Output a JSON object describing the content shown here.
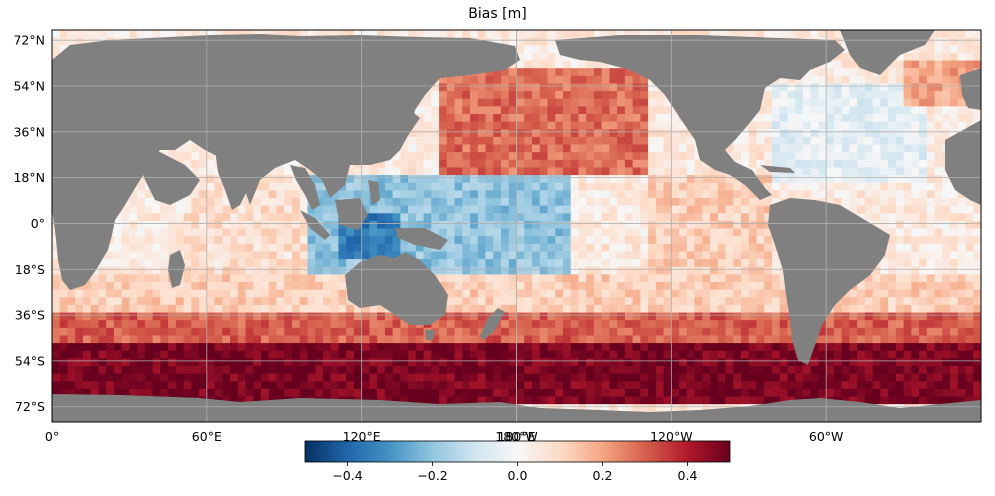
{
  "title": "Bias [m]",
  "map": {
    "projection": "PlateCarree",
    "lon_range": [
      0,
      360
    ],
    "lat_range": [
      -78,
      76
    ],
    "land_color": "#808080",
    "grid_color": "#b0b0b0",
    "lat_ticks": [
      {
        "value": 72,
        "label": "72°N"
      },
      {
        "value": 54,
        "label": "54°N"
      },
      {
        "value": 36,
        "label": "36°N"
      },
      {
        "value": 18,
        "label": "18°N"
      },
      {
        "value": 0,
        "label": "0°"
      },
      {
        "value": -18,
        "label": "18°S"
      },
      {
        "value": -36,
        "label": "36°S"
      },
      {
        "value": -54,
        "label": "54°S"
      },
      {
        "value": -72,
        "label": "72°S"
      }
    ],
    "lon_ticks": [
      {
        "value": 0,
        "label": "0°"
      },
      {
        "value": 60,
        "label": "60°E"
      },
      {
        "value": 120,
        "label": "120°E"
      },
      {
        "value": 180,
        "label": "180°E"
      },
      {
        "value": 180,
        "label": "180°W"
      },
      {
        "value": 240,
        "label": "120°W"
      },
      {
        "value": 300,
        "label": "60°W"
      }
    ]
  },
  "colorbar": {
    "colormap": "RdBu_r",
    "range": [
      -0.5,
      0.5
    ],
    "ticks": [
      {
        "value": -0.4,
        "label": "−0.4"
      },
      {
        "value": -0.2,
        "label": "−0.2"
      },
      {
        "value": 0.0,
        "label": "0.0"
      },
      {
        "value": 0.2,
        "label": "0.2"
      },
      {
        "value": 0.4,
        "label": "0.4"
      }
    ]
  },
  "chart_data": {
    "type": "heatmap",
    "title": "Bias [m]",
    "value_range": [
      -0.5,
      0.5
    ],
    "regions": [
      {
        "lat": [
          -70,
          -48
        ],
        "lon": [
          0,
          360
        ],
        "bias": 0.48
      },
      {
        "lat": [
          -48,
          -36
        ],
        "lon": [
          0,
          360
        ],
        "bias": 0.3
      },
      {
        "lat": [
          -36,
          -20
        ],
        "lon": [
          0,
          360
        ],
        "bias": 0.12
      },
      {
        "lat": [
          -20,
          20
        ],
        "lon": [
          100,
          200
        ],
        "bias": -0.2
      },
      {
        "lat": [
          -15,
          5
        ],
        "lon": [
          110,
          135
        ],
        "bias": -0.35
      },
      {
        "lat": [
          20,
          60
        ],
        "lon": [
          150,
          230
        ],
        "bias": 0.28
      },
      {
        "lat": [
          15,
          55
        ],
        "lon": [
          280,
          340
        ],
        "bias": -0.05
      },
      {
        "lat": [
          45,
          65
        ],
        "lon": [
          330,
          360
        ],
        "bias": 0.2
      },
      {
        "lat": [
          -20,
          20
        ],
        "lon": [
          230,
          280
        ],
        "bias": 0.12
      },
      {
        "lat": [
          -20,
          20
        ],
        "lon": [
          50,
          100
        ],
        "bias": 0.08
      }
    ]
  }
}
